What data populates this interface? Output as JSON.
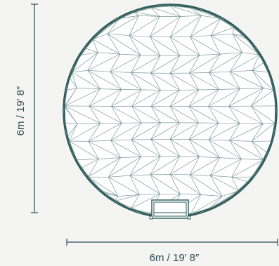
{
  "diagram": {
    "type": "geodesic-dome-top-view",
    "colors": {
      "background": "#f4f4f3",
      "dome_fill": "#ffffff",
      "dome_outline": "#2e5a5a",
      "triangle_lines": "#7f9b99",
      "dimension_lines": "#2d4a52",
      "dimension_text": "#2d4a52"
    },
    "height_label": "6m / 19′ 8″",
    "width_label": "6m / 19′ 8″"
  }
}
